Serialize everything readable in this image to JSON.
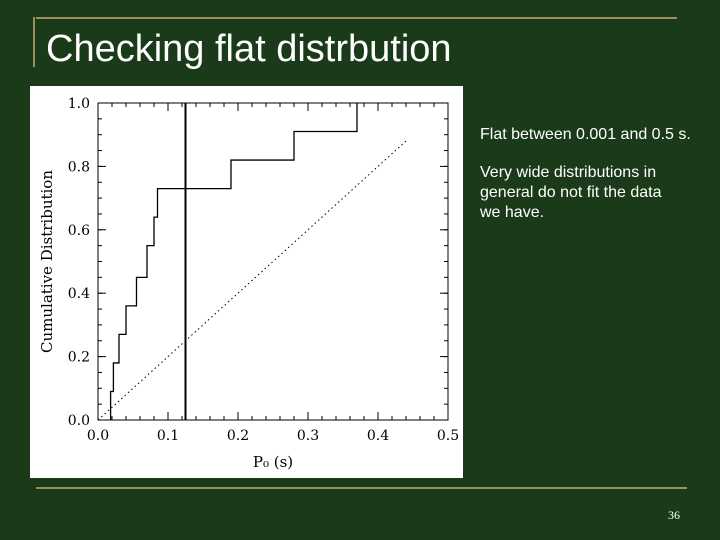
{
  "slide": {
    "title": "Checking flat distrbution",
    "bullet1": "Flat between 0.001 and 0.5 s.",
    "bullet2": "Very wide distributions in general do not fit the data we have.",
    "page_number": "36"
  },
  "colors": {
    "background": "#1a3a1a",
    "rule": "#9a8f5a",
    "text": "#ffffff"
  },
  "chart_data": {
    "type": "line",
    "xlabel": "P₀ (s)",
    "ylabel": "Cumulative Distribution",
    "xlim": [
      0,
      0.5
    ],
    "ylim": [
      0,
      1.0
    ],
    "x_ticks": [
      "0.0",
      "0.1",
      "0.2",
      "0.3",
      "0.4",
      "0.5"
    ],
    "y_ticks": [
      "0.0",
      "0.2",
      "0.4",
      "0.6",
      "0.8",
      "1.0"
    ],
    "x_tick_values": [
      0,
      0.1,
      0.2,
      0.3,
      0.4,
      0.5
    ],
    "y_tick_values": [
      0,
      0.2,
      0.4,
      0.6,
      0.8,
      1.0
    ],
    "grid": false,
    "series": [
      {
        "style": "step",
        "x": [
          0.018,
          0.022,
          0.03,
          0.04,
          0.055,
          0.07,
          0.08,
          0.085,
          0.12,
          0.19,
          0.28,
          0.37
        ],
        "y": [
          0.09,
          0.18,
          0.27,
          0.36,
          0.45,
          0.55,
          0.64,
          0.73,
          0.73,
          0.82,
          0.91,
          1.0
        ]
      },
      {
        "style": "dotted",
        "x": [
          0.0,
          0.44
        ],
        "y": [
          0.0,
          0.88
        ]
      }
    ],
    "vline": {
      "x": 0.125
    }
  }
}
